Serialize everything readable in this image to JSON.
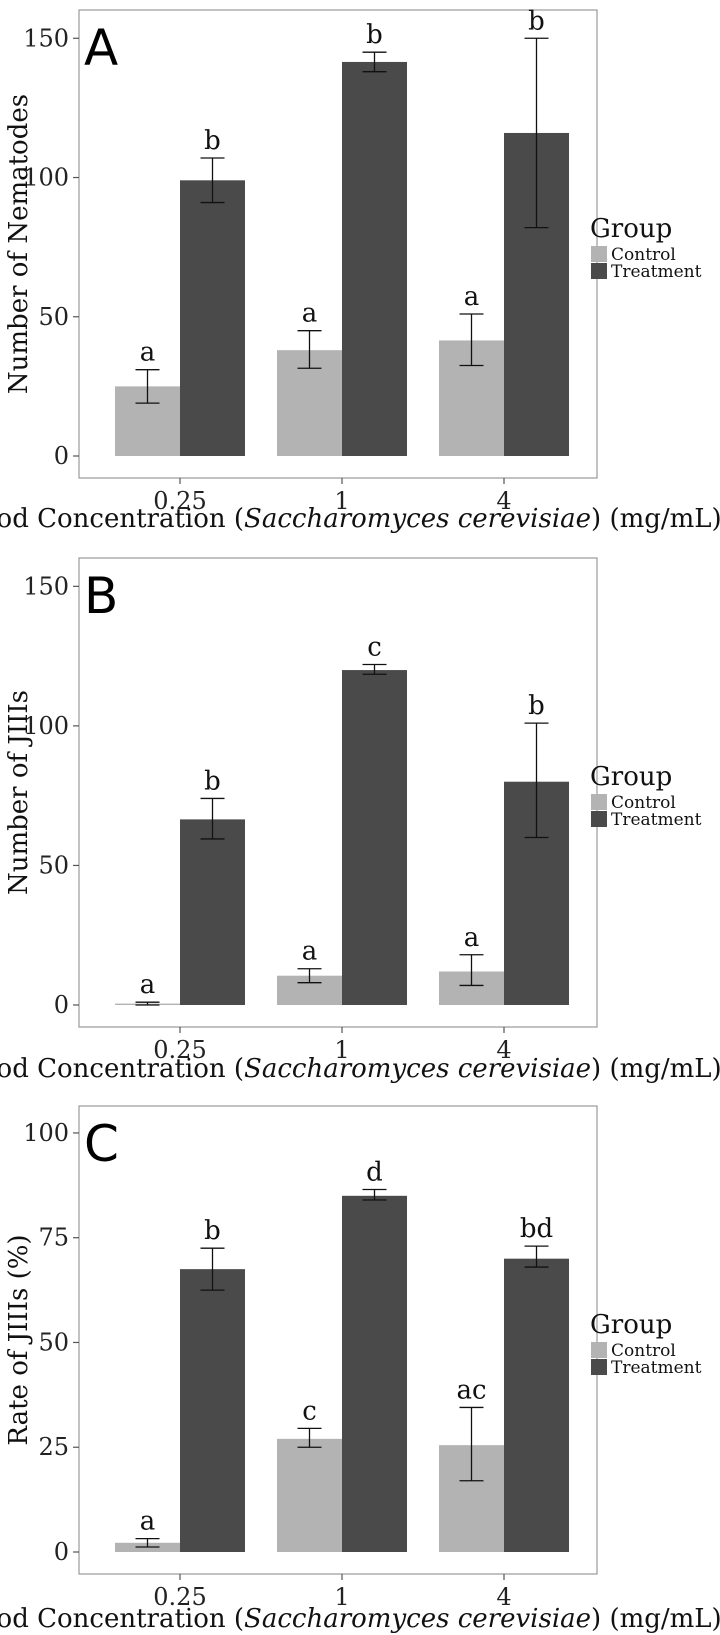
{
  "chart_data": [
    {
      "type": "bar",
      "panel_label": "A",
      "categories": [
        "0.25",
        "1",
        "4"
      ],
      "xlabel_parts": [
        "Food Concentration (",
        "Saccharomyces cerevisiae",
        ") (mg/mL)"
      ],
      "ylabel": "Number of Nematodes",
      "ylim": [
        0,
        158
      ],
      "yticks": [
        0,
        50,
        100,
        150
      ],
      "legend": {
        "title": "Group",
        "position": "right"
      },
      "series": [
        {
          "name": "Control",
          "color": "#b3b3b3",
          "values": [
            25,
            38,
            41.5
          ],
          "err_low": [
            19,
            31.5,
            32.5
          ],
          "err_high": [
            31,
            45,
            51
          ],
          "letters": [
            "a",
            "a",
            "a"
          ]
        },
        {
          "name": "Treatment",
          "color": "#4a4a4a",
          "values": [
            99,
            141.5,
            116
          ],
          "err_low": [
            91,
            138,
            82
          ],
          "err_high": [
            107,
            145,
            150
          ],
          "letters": [
            "b",
            "b",
            "b"
          ]
        }
      ]
    },
    {
      "type": "bar",
      "panel_label": "B",
      "categories": [
        "0.25",
        "1",
        "4"
      ],
      "xlabel_parts": [
        "Food Concentration (",
        "Saccharomyces cerevisiae",
        ") (mg/mL)"
      ],
      "ylabel": "Number of JIIIs",
      "ylim": [
        0,
        158
      ],
      "yticks": [
        0,
        50,
        100,
        150
      ],
      "legend": {
        "title": "Group",
        "position": "right"
      },
      "series": [
        {
          "name": "Control",
          "color": "#b3b3b3",
          "values": [
            0.5,
            10.5,
            12
          ],
          "err_low": [
            0,
            8,
            7
          ],
          "err_high": [
            1,
            13,
            18
          ],
          "letters": [
            "a",
            "a",
            "a"
          ]
        },
        {
          "name": "Treatment",
          "color": "#4a4a4a",
          "values": [
            66.5,
            120,
            80
          ],
          "err_low": [
            59.5,
            118.5,
            60
          ],
          "err_high": [
            74,
            122,
            101
          ],
          "letters": [
            "b",
            "c",
            "b"
          ]
        }
      ]
    },
    {
      "type": "bar",
      "panel_label": "C",
      "categories": [
        "0.25",
        "1",
        "4"
      ],
      "xlabel_parts": [
        "Food Concentration (",
        "Saccharomyces cerevisiae",
        ") (mg/mL)"
      ],
      "ylabel": "Rate of JIIIs (%)",
      "ylim": [
        0,
        105
      ],
      "yticks": [
        0,
        25,
        50,
        75,
        100
      ],
      "legend": {
        "title": "Group",
        "position": "right"
      },
      "series": [
        {
          "name": "Control",
          "color": "#b3b3b3",
          "values": [
            2.2,
            27,
            25.5
          ],
          "err_low": [
            1.2,
            25,
            17
          ],
          "err_high": [
            3.2,
            29.5,
            34.5
          ],
          "letters": [
            "a",
            "c",
            "ac"
          ]
        },
        {
          "name": "Treatment",
          "color": "#4a4a4a",
          "values": [
            67.5,
            85,
            70
          ],
          "err_low": [
            62.5,
            84,
            68
          ],
          "err_high": [
            72.5,
            86.5,
            73
          ],
          "letters": [
            "b",
            "d",
            "bd"
          ]
        }
      ]
    }
  ]
}
